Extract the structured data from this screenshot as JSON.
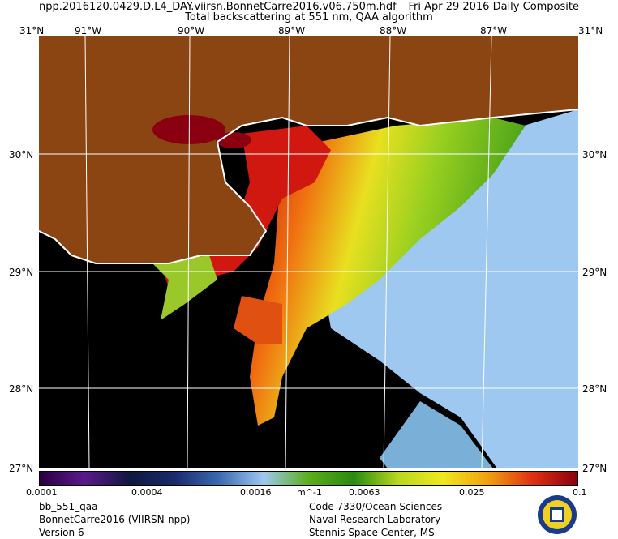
{
  "header": {
    "file_name": "npp.2016120.0429.D.L4_DAY.viirsn.BonnetCarre2016.v06.750m.hdf",
    "date": "Fri Apr 29 2016 Daily Composite",
    "product": "Total backscattering at 551 nm, QAA algorithm"
  },
  "top_lon_labels": [
    "31°N",
    "91°W",
    "90°W",
    "89°W",
    "88°W",
    "87°W",
    "31°N"
  ],
  "bottom_corner_labels": [
    "27°N",
    "27°N"
  ],
  "lat_labels": [
    "30°N",
    "29°N",
    "28°N"
  ],
  "colorbar": {
    "ticks": [
      "0.0001",
      "0.0004",
      "0.0016",
      "0.0063",
      "0.025",
      "0.1"
    ],
    "unit": "m^-1",
    "colors": [
      "#2a0040",
      "#5a1a8a",
      "#101840",
      "#1a2a6a",
      "#3a6ab0",
      "#9ec8f0",
      "#5cae1a",
      "#2a8a10",
      "#b8d820",
      "#f0e820",
      "#f0a010",
      "#e03010",
      "#8a0010"
    ]
  },
  "footer": {
    "left": [
      "bb_551_qaa",
      "BonnetCarre2016 (VIIRSN-npp)",
      "Version 6"
    ],
    "right": [
      "Code 7330/Ocean Sciences",
      "Naval Research Laboratory",
      "Stennis Space Center, MS"
    ]
  },
  "map_colors": {
    "land": "#8b4513",
    "nodata": "#000000",
    "coast": "#ffffff",
    "offshore": "#9ec8f0"
  }
}
